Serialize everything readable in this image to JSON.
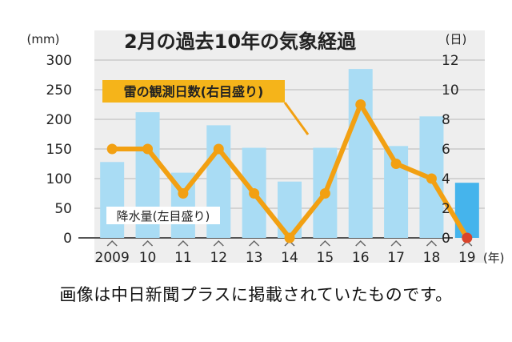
{
  "caption": "画像は中日新聞プラスに掲載されていたものです。",
  "chart_data": {
    "type": "bar",
    "title": "2月の過去10年の気象経過",
    "left_unit": "(mm)",
    "right_unit": "(日)",
    "x_unit": "(年)",
    "categories": [
      "2009",
      "10",
      "11",
      "12",
      "13",
      "14",
      "15",
      "16",
      "17",
      "18",
      "19"
    ],
    "left_axis": {
      "min": 0,
      "max": 300,
      "ticks": [
        "300",
        "250",
        "200",
        "150",
        "100",
        "50",
        "0"
      ]
    },
    "right_axis": {
      "min": 0,
      "max": 12,
      "ticks": [
        "12",
        "10",
        "8",
        "6",
        "4",
        "2",
        "0"
      ]
    },
    "series": [
      {
        "name": "降水量(左目盛り)",
        "type": "bar",
        "axis": "left",
        "values": [
          128,
          212,
          110,
          190,
          152,
          95,
          152,
          285,
          155,
          205,
          93
        ]
      },
      {
        "name": "雷の観測日数(右目盛り)",
        "type": "line",
        "axis": "right",
        "values": [
          6,
          6,
          3,
          6,
          3,
          0,
          3,
          9,
          5,
          4,
          0
        ]
      }
    ],
    "colors": {
      "bar": "#a9dcf4",
      "bar_last": "#45b4ec",
      "line": "#f2a012",
      "marker_last": "#d9442a",
      "background": "#eeeeee",
      "grid": "#b8b8b8"
    }
  }
}
